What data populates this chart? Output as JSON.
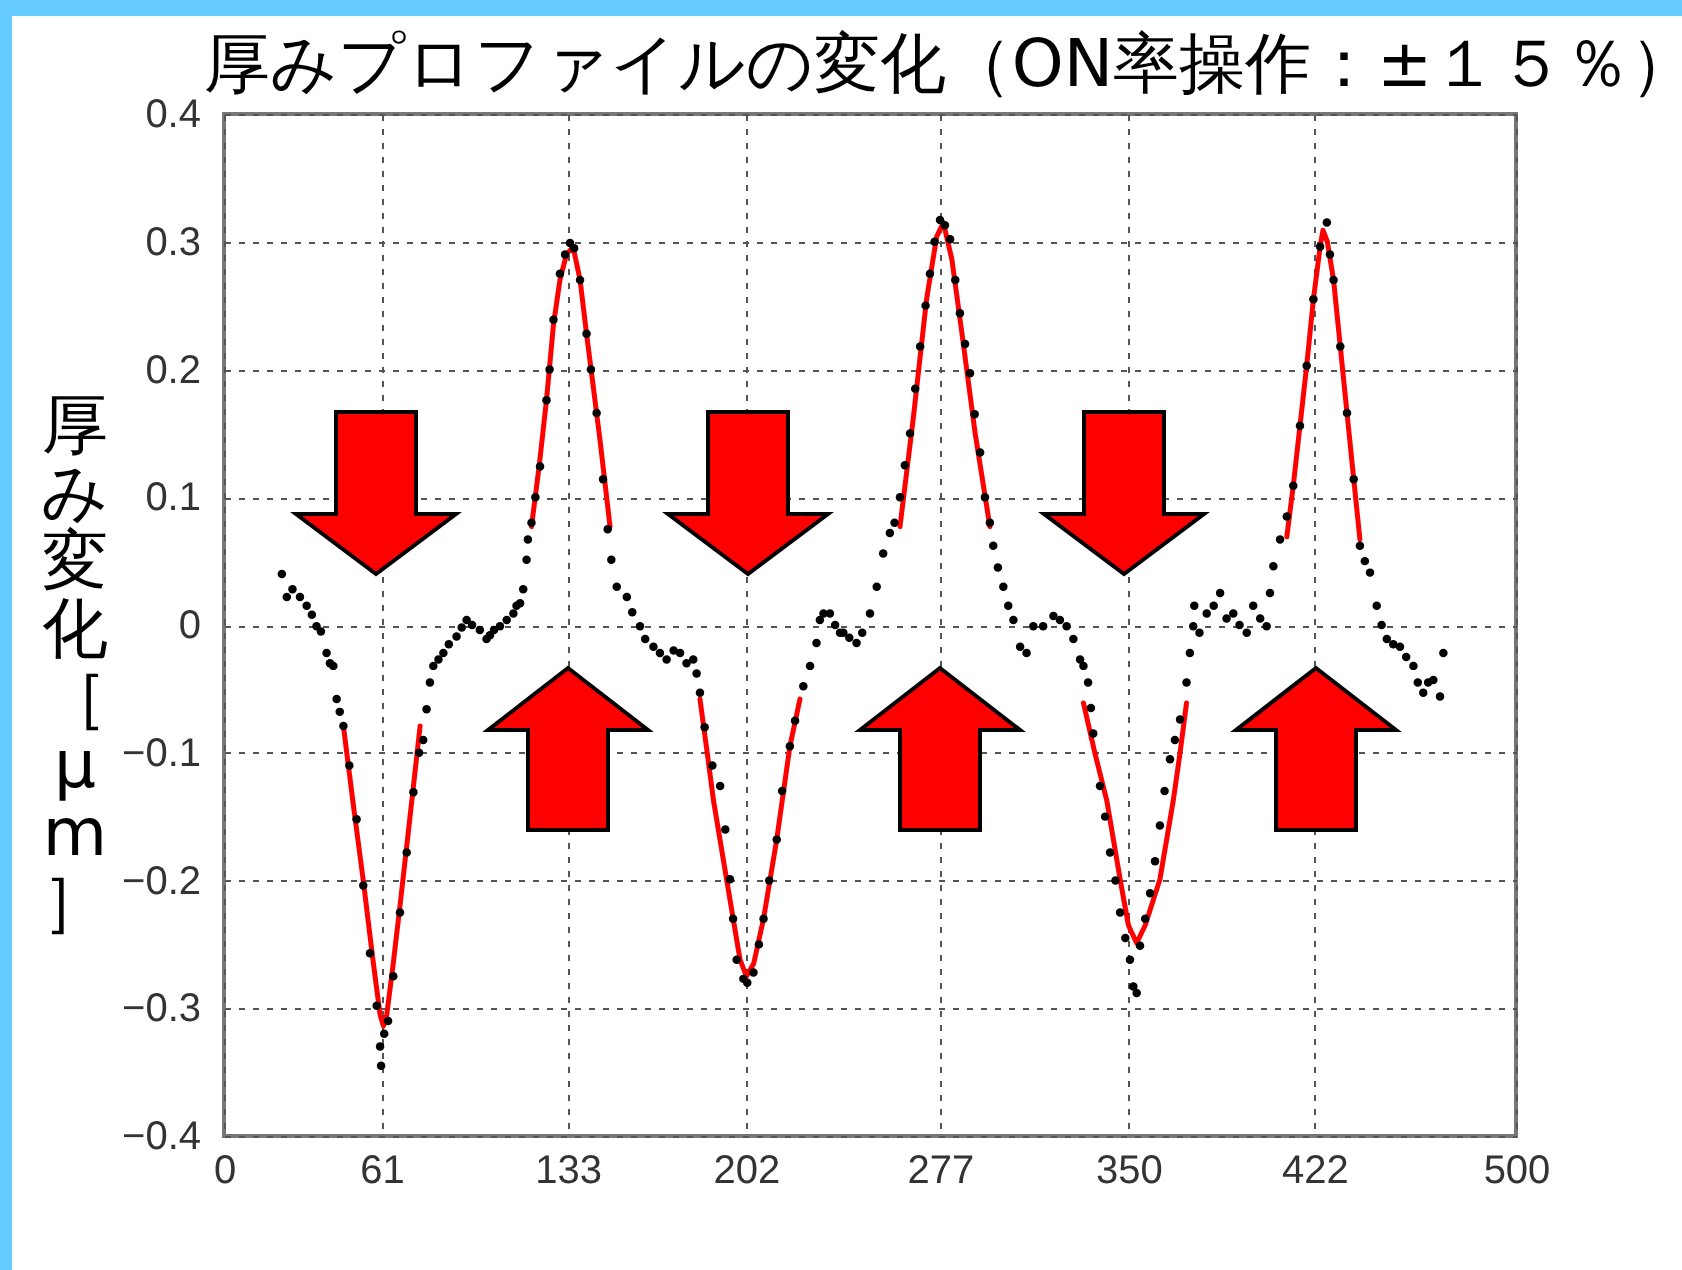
{
  "chart_data": {
    "type": "scatter",
    "title": "厚みプロファイルの変化（ON率操作：±１５％）",
    "ylabel": "厚み変化［μm］",
    "xlim": [
      0,
      500
    ],
    "xticks": [
      0,
      61,
      133,
      202,
      277,
      350,
      422,
      500
    ],
    "ylim": [
      -0.4,
      0.4
    ],
    "yticks": [
      -0.4,
      -0.3,
      -0.2,
      -0.1,
      0,
      0.1,
      0.2,
      0.3,
      0.4
    ],
    "grid": true,
    "series": [
      {
        "type": "line",
        "color": "#ff0000",
        "x": [
          46.2,
          50,
          53.9,
          57.5,
          60.4,
          61.7,
          63,
          65.5,
          68.1,
          72,
          75.9
        ],
        "values": [
          -0.079,
          -0.14,
          -0.2,
          -0.26,
          -0.305,
          -0.314,
          -0.305,
          -0.265,
          -0.22,
          -0.15,
          -0.079
        ]
      },
      {
        "type": "line",
        "color": "#ff0000",
        "x": [
          119,
          122,
          124.8,
          127.5,
          130,
          132.5,
          135.1,
          137.8,
          140.3,
          143,
          145.5,
          149.4
        ],
        "values": [
          0.077,
          0.125,
          0.176,
          0.235,
          0.27,
          0.29,
          0.296,
          0.27,
          0.228,
          0.185,
          0.145,
          0.077
        ]
      },
      {
        "type": "line",
        "color": "#ff0000",
        "x": [
          184.2,
          187,
          189.4,
          194.5,
          199.7,
          202.2,
          205,
          208.8,
          213.9,
          219,
          222.9
        ],
        "values": [
          -0.058,
          -0.1,
          -0.137,
          -0.199,
          -0.262,
          -0.275,
          -0.265,
          -0.23,
          -0.168,
          -0.095,
          -0.058
        ]
      },
      {
        "type": "line",
        "color": "#ff0000",
        "x": [
          261.6,
          266.7,
          271.9,
          275.8,
          278.4,
          281.7,
          285.6,
          290.7,
          296.4
        ],
        "values": [
          0.077,
          0.161,
          0.255,
          0.304,
          0.315,
          0.286,
          0.228,
          0.15,
          0.077
        ]
      },
      {
        "type": "line",
        "color": "#ff0000",
        "x": [
          332.6,
          337,
          341.6,
          346.8,
          350,
          353.2,
          356.5,
          362.2,
          367.4,
          370,
          372.5
        ],
        "values": [
          -0.061,
          -0.1,
          -0.137,
          -0.199,
          -0.235,
          -0.249,
          -0.235,
          -0.199,
          -0.137,
          -0.1,
          -0.061
        ]
      },
      {
        "type": "line",
        "color": "#ff0000",
        "x": [
          411.3,
          413.8,
          416.4,
          419,
          421.6,
          424.2,
          425.3,
          427,
          429.4,
          432,
          434.6,
          437.2,
          439.6
        ],
        "values": [
          0.069,
          0.109,
          0.156,
          0.203,
          0.255,
          0.296,
          0.309,
          0.3,
          0.27,
          0.218,
          0.166,
          0.114,
          0.067
        ]
      },
      {
        "color": "#000000",
        "marker": "circle",
        "x": [
          22.4,
          24.3,
          26.5,
          29.4,
          32,
          34,
          35.8,
          37.5,
          39.7,
          41,
          42.3,
          43.6,
          44.8,
          46.2,
          48.5,
          51.3,
          53.9,
          56.5,
          59.1,
          60.4,
          60.8,
          62,
          63.5,
          65.5,
          68.1,
          70.7,
          73.3,
          75.5,
          77.1,
          78.4,
          79.7,
          81,
          83,
          84.9,
          87,
          90,
          92,
          93.9,
          96,
          99,
          101.6,
          102.9,
          104.5,
          106.8,
          109.4,
          112,
          113.2,
          114.6,
          115.8,
          117.1,
          117.6,
          119,
          120.5,
          122.3,
          124.8,
          126,
          127.5,
          130,
          132,
          133.9,
          135.5,
          137.8,
          140.3,
          142,
          144.2,
          146.7,
          148.5,
          149.9,
          152,
          155.9,
          158,
          161,
          163,
          166.2,
          168.7,
          171.3,
          174,
          176.5,
          179,
          181.6,
          182.9,
          184.2,
          186,
          189,
          192,
          194,
          195.8,
          197,
          198.4,
          201,
          202.5,
          204.9,
          207,
          208.8,
          211,
          213.9,
          216,
          219,
          221,
          224.2,
          226.8,
          229.3,
          230.6,
          232,
          234.5,
          236.5,
          238.4,
          239.7,
          242,
          244.8,
          247,
          250,
          252.6,
          255.1,
          257.7,
          259.5,
          261.6,
          263.5,
          265.5,
          267.5,
          269.4,
          271.5,
          273.2,
          275,
          277.1,
          279,
          281,
          283,
          284.8,
          286.8,
          288.7,
          290.5,
          292.6,
          294.5,
          296.4,
          297.7,
          299.5,
          301.6,
          303.5,
          305.5,
          308.1,
          310.6,
          313.2,
          317,
          321,
          323.5,
          326.1,
          328.7,
          331.3,
          332.6,
          334.4,
          335.5,
          336.4,
          339,
          341,
          342.9,
          345,
          346.8,
          348.8,
          350.6,
          351.9,
          353.2,
          354.5,
          356.5,
          358.4,
          360.3,
          362.2,
          364,
          366.1,
          368,
          370,
          372.5,
          373.8,
          375.1,
          375.5,
          377.5,
          380.3,
          383,
          385.5,
          388,
          390.6,
          393,
          395.8,
          398.3,
          401,
          403.5,
          404.8,
          406.1,
          408.7,
          411.3,
          413.8,
          416.4,
          419,
          421.6,
          424.2,
          426.8,
          428,
          429.4,
          432,
          434.6,
          437.2,
          439.6,
          441.5,
          443.5,
          446.1,
          448,
          450,
          452.5,
          455.1,
          457.5,
          460.3,
          462,
          464.1,
          466,
          468,
          470.6,
          471.9
        ],
        "values": [
          0.04,
          0.022,
          0.028,
          0.022,
          0.015,
          0.008,
          -0.001,
          -0.005,
          -0.022,
          -0.03,
          -0.032,
          -0.058,
          -0.068,
          -0.079,
          -0.11,
          -0.152,
          -0.204,
          -0.257,
          -0.298,
          -0.33,
          -0.345,
          -0.32,
          -0.31,
          -0.275,
          -0.225,
          -0.178,
          -0.131,
          -0.1,
          -0.09,
          -0.066,
          -0.045,
          -0.032,
          -0.027,
          -0.022,
          -0.015,
          -0.009,
          -0.002,
          0.004,
          0,
          -0.004,
          -0.011,
          -0.008,
          -0.004,
          -0.001,
          0.004,
          0.009,
          0.015,
          0.017,
          0.028,
          0.051,
          0.067,
          0.08,
          0.1,
          0.124,
          0.176,
          0.2,
          0.239,
          0.275,
          0.29,
          0.299,
          0.295,
          0.27,
          0.228,
          0.2,
          0.166,
          0.114,
          0.075,
          0.051,
          0.03,
          0.022,
          0.01,
          -0.001,
          -0.011,
          -0.017,
          -0.022,
          -0.027,
          -0.02,
          -0.022,
          -0.03,
          -0.027,
          -0.038,
          -0.053,
          -0.08,
          -0.11,
          -0.126,
          -0.16,
          -0.199,
          -0.23,
          -0.262,
          -0.277,
          -0.28,
          -0.272,
          -0.25,
          -0.23,
          -0.2,
          -0.168,
          -0.13,
          -0.095,
          -0.075,
          -0.048,
          -0.032,
          -0.014,
          0.004,
          0.009,
          0.009,
          0,
          -0.006,
          -0.006,
          -0.01,
          -0.014,
          -0.006,
          0.009,
          0.03,
          0.056,
          0.072,
          0.08,
          0.1,
          0.125,
          0.15,
          0.185,
          0.218,
          0.25,
          0.275,
          0.3,
          0.317,
          0.313,
          0.302,
          0.27,
          0.244,
          0.22,
          0.197,
          0.165,
          0.135,
          0.1,
          0.08,
          0.062,
          0.045,
          0.03,
          0.015,
          0.004,
          -0.017,
          -0.022,
          -0.001,
          -0.001,
          0.007,
          0.004,
          -0.001,
          -0.011,
          -0.027,
          -0.032,
          -0.045,
          -0.065,
          -0.085,
          -0.126,
          -0.15,
          -0.178,
          -0.2,
          -0.225,
          -0.245,
          -0.262,
          -0.283,
          -0.288,
          -0.251,
          -0.23,
          -0.21,
          -0.185,
          -0.157,
          -0.13,
          -0.105,
          -0.09,
          -0.074,
          -0.045,
          -0.022,
          -0.001,
          0.015,
          -0.006,
          0.009,
          0.015,
          0.025,
          0.005,
          0.009,
          0,
          -0.006,
          0.015,
          0.005,
          -0.001,
          0.025,
          0.046,
          0.067,
          0.085,
          0.109,
          0.156,
          0.203,
          0.255,
          0.296,
          0.315,
          0.29,
          0.27,
          0.218,
          0.166,
          0.114,
          0.062,
          0.05,
          0.041,
          0.015,
          0,
          -0.011,
          -0.015,
          -0.017,
          -0.025,
          -0.032,
          -0.045,
          -0.053,
          -0.045,
          -0.043,
          -0.056,
          -0.022
        ]
      }
    ]
  }
}
